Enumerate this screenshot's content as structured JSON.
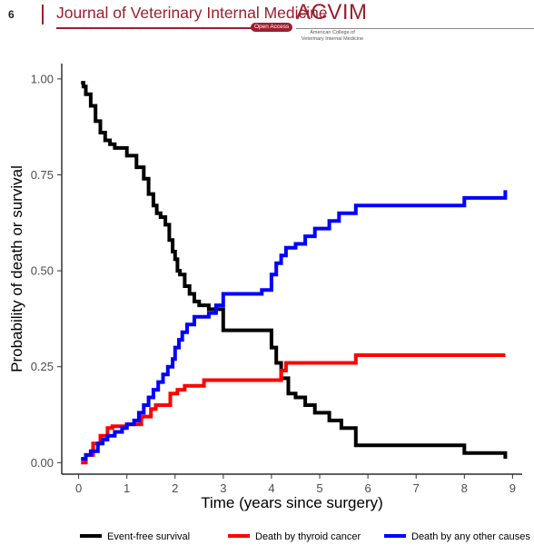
{
  "header": {
    "page_number": "6",
    "journal_title": "Journal of Veterinary Internal Medicine",
    "open_access": "Open Access",
    "logo_text": "ACVIM",
    "logo_subtitle_line1": "American College of",
    "logo_subtitle_line2": "Veterinary Internal Medicine",
    "accent_color": "#9c1f2e"
  },
  "chart_data": {
    "type": "line",
    "step": true,
    "title": "",
    "xlabel": "Time (years since surgery)",
    "ylabel": "Probability of death or survival",
    "xlim": [
      -0.35,
      9.2
    ],
    "ylim": [
      -0.03,
      1.04
    ],
    "xticks": [
      0,
      1,
      2,
      3,
      4,
      5,
      6,
      7,
      8,
      9
    ],
    "xtick_labels": [
      "0",
      "1",
      "2",
      "3",
      "4",
      "5",
      "6",
      "7",
      "8",
      "9"
    ],
    "yticks": [
      0.0,
      0.25,
      0.5,
      0.75,
      1.0
    ],
    "ytick_labels": [
      "0.00",
      "0.25",
      "0.50",
      "0.75",
      "1.00"
    ],
    "grid": false,
    "legend_position": "bottom",
    "series": [
      {
        "name": "Event-free survival",
        "color": "#000000",
        "x": [
          0.05,
          0.1,
          0.15,
          0.25,
          0.35,
          0.45,
          0.55,
          0.65,
          0.75,
          0.85,
          1.0,
          1.2,
          1.35,
          1.45,
          1.55,
          1.62,
          1.7,
          1.8,
          1.88,
          1.95,
          2.0,
          2.05,
          2.1,
          2.2,
          2.3,
          2.4,
          2.5,
          2.7,
          3.0,
          3.5,
          4.0,
          4.1,
          4.2,
          4.35,
          4.5,
          4.7,
          4.9,
          5.2,
          5.45,
          5.75,
          6.5,
          8.0,
          8.85
        ],
        "y": [
          0.99,
          0.98,
          0.96,
          0.93,
          0.89,
          0.86,
          0.84,
          0.83,
          0.82,
          0.82,
          0.8,
          0.77,
          0.74,
          0.7,
          0.67,
          0.65,
          0.64,
          0.62,
          0.58,
          0.55,
          0.53,
          0.5,
          0.49,
          0.46,
          0.44,
          0.42,
          0.41,
          0.4,
          0.345,
          0.345,
          0.3,
          0.26,
          0.22,
          0.18,
          0.17,
          0.15,
          0.13,
          0.11,
          0.09,
          0.045,
          0.045,
          0.025,
          0.01
        ]
      },
      {
        "name": "Death by thyroid cancer",
        "color": "#ff0000",
        "x": [
          0.05,
          0.15,
          0.3,
          0.45,
          0.6,
          0.7,
          1.0,
          1.3,
          1.5,
          1.6,
          1.9,
          2.05,
          2.2,
          2.6,
          3.0,
          3.5,
          4.0,
          4.2,
          4.3,
          4.8,
          5.3,
          5.75,
          7.0,
          8.85
        ],
        "y": [
          0.0,
          0.02,
          0.05,
          0.07,
          0.09,
          0.095,
          0.1,
          0.12,
          0.14,
          0.15,
          0.18,
          0.19,
          0.2,
          0.215,
          0.215,
          0.215,
          0.215,
          0.24,
          0.26,
          0.26,
          0.26,
          0.28,
          0.28,
          0.28
        ]
      },
      {
        "name": "Death by any other causes",
        "color": "#0000ff",
        "x": [
          0.05,
          0.15,
          0.25,
          0.4,
          0.5,
          0.6,
          0.75,
          0.9,
          1.0,
          1.15,
          1.25,
          1.35,
          1.45,
          1.55,
          1.65,
          1.75,
          1.85,
          1.95,
          2.0,
          2.08,
          2.15,
          2.25,
          2.4,
          2.7,
          2.85,
          3.0,
          3.5,
          3.8,
          4.0,
          4.1,
          4.2,
          4.3,
          4.5,
          4.7,
          4.9,
          5.2,
          5.4,
          5.75,
          7.0,
          8.0,
          8.85
        ],
        "y": [
          0.01,
          0.02,
          0.03,
          0.05,
          0.06,
          0.07,
          0.08,
          0.09,
          0.1,
          0.11,
          0.13,
          0.15,
          0.17,
          0.19,
          0.21,
          0.23,
          0.25,
          0.27,
          0.3,
          0.32,
          0.34,
          0.36,
          0.38,
          0.39,
          0.41,
          0.44,
          0.44,
          0.45,
          0.49,
          0.52,
          0.54,
          0.56,
          0.57,
          0.59,
          0.61,
          0.63,
          0.65,
          0.67,
          0.67,
          0.69,
          0.71
        ]
      }
    ]
  }
}
